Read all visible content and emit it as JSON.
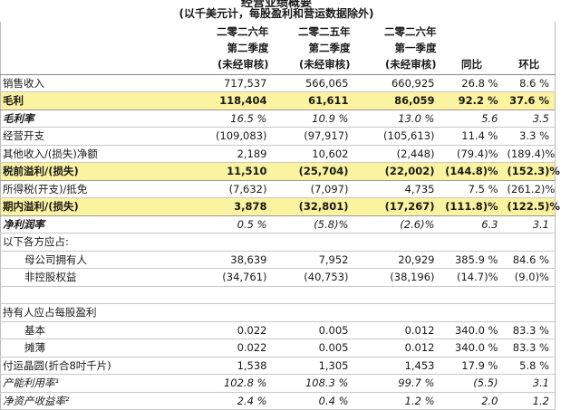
{
  "header": {
    "title": "经营业绩概要",
    "subtitle": "(以千美元计，每股盈利和营运数据除外)"
  },
  "table": {
    "columns": [
      [
        "二零二六年",
        "第二季度",
        "(未经审核)"
      ],
      [
        "二零二五年",
        "第二季度",
        "(未经审核)"
      ],
      [
        "二零二六年",
        "第一季度",
        "(未经审核)"
      ],
      [
        "同比"
      ],
      [
        "环比"
      ]
    ],
    "sections": [
      {
        "rows": [
          {
            "style": "plain",
            "cells": [
              "销售收入",
              "717,537",
              "566,065",
              "660,925",
              "26.8 %",
              "8.6 %"
            ]
          },
          {
            "style": "highlight",
            "cells": [
              "毛利",
              "118,404",
              "61,611",
              "86,059",
              "92.2 %",
              "37.6 %"
            ]
          },
          {
            "style": "ratio",
            "cells": [
              "毛利率",
              "16.5 %",
              "10.9 %",
              "13.0 %",
              "5.6",
              "3.5"
            ]
          },
          {
            "style": "plain",
            "cells": [
              "经营开支",
              "(109,083)",
              "(97,917)",
              "(105,613)",
              "11.4 %",
              "3.3 %"
            ]
          },
          {
            "style": "plain",
            "cells": [
              "其他收入/(损失)净额",
              "2,189",
              "10,602",
              "(2,448)",
              "(79.4)%",
              "(189.4)%"
            ]
          },
          {
            "style": "highlight",
            "cells": [
              "税前溢利/(损失)",
              "11,510",
              "(25,704)",
              "(22,002)",
              "(144.8)%",
              "(152.3)%"
            ]
          },
          {
            "style": "plain",
            "cells": [
              "所得税(开支)/抵免",
              "(7,632)",
              "(7,097)",
              "4,735",
              "7.5 %",
              "(261.2)%"
            ]
          },
          {
            "style": "highlight",
            "cells": [
              "期内溢利/(损失)",
              "3,878",
              "(32,801)",
              "(17,267)",
              "(111.8)%",
              "(122.5)%"
            ]
          },
          {
            "style": "ratio",
            "cells": [
              "净利润率",
              "0.5 %",
              "(5.8)%",
              "(2.6)%",
              "6.3",
              "3.1"
            ]
          },
          {
            "style": "plain",
            "cells": [
              "以下各方应占:"
            ]
          },
          {
            "style": "indent",
            "cells": [
              "母公司拥有人",
              "38,639",
              "7,952",
              "20,929",
              "385.9 %",
              "84.6 %"
            ]
          },
          {
            "style": "indent",
            "cells": [
              "非控股权益",
              "(34,761)",
              "(40,753)",
              "(38,196)",
              "(14.7)%",
              "(9.0)%"
            ]
          }
        ]
      },
      {
        "rows": [
          {
            "style": "plain",
            "cells": [
              "持有人应占每股盈利"
            ]
          },
          {
            "style": "indent",
            "cells": [
              "基本",
              "0.022",
              "0.005",
              "0.012",
              "340.0 %",
              "83.3 %"
            ]
          },
          {
            "style": "indent",
            "cells": [
              "摊薄",
              "0.022",
              "0.005",
              "0.012",
              "340.0 %",
              "83.3 %"
            ]
          },
          {
            "style": "plain",
            "cells": [
              "付运晶圆(折合8吋千片)",
              "1,538",
              "1,305",
              "1,453",
              "17.9 %",
              "5.8 %"
            ]
          },
          {
            "style": "italic",
            "cells": [
              "产能利用率¹",
              "102.8 %",
              "108.3 %",
              "99.7 %",
              "(5.5)",
              "3.1"
            ]
          },
          {
            "style": "italic",
            "cells": [
              "净资产收益率²",
              "2.4 %",
              "0.4 %",
              "1.2 %",
              "2.0",
              "1.2"
            ]
          }
        ]
      }
    ]
  }
}
